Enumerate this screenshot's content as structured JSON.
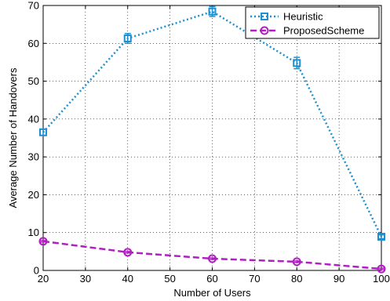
{
  "chart_data": {
    "type": "line",
    "xlabel": "Number of Users",
    "ylabel": "Average Number of Handovers",
    "xlim": [
      20,
      100
    ],
    "ylim": [
      0,
      70
    ],
    "xticks": [
      20,
      30,
      40,
      50,
      60,
      70,
      80,
      90,
      100
    ],
    "yticks": [
      0,
      10,
      20,
      30,
      40,
      50,
      60,
      70
    ],
    "grid": true,
    "legend_position": "top-right",
    "series": [
      {
        "name": "Heuristic",
        "x": [
          20,
          40,
          60,
          80,
          100
        ],
        "y": [
          36.5,
          61.3,
          68.4,
          54.8,
          8.9
        ],
        "error": [
          0.8,
          1.3,
          1.3,
          1.5,
          0.5
        ],
        "color": "#1f8fcf",
        "line_style": "dotted",
        "marker": "square"
      },
      {
        "name": "ProposedScheme",
        "x": [
          20,
          40,
          60,
          80,
          100
        ],
        "y": [
          7.7,
          4.8,
          3.1,
          2.3,
          0.4
        ],
        "error": [
          0.2,
          0.2,
          0.2,
          0.2,
          0.2
        ],
        "color": "#b020c0",
        "line_style": "dashed",
        "marker": "circle"
      }
    ]
  }
}
